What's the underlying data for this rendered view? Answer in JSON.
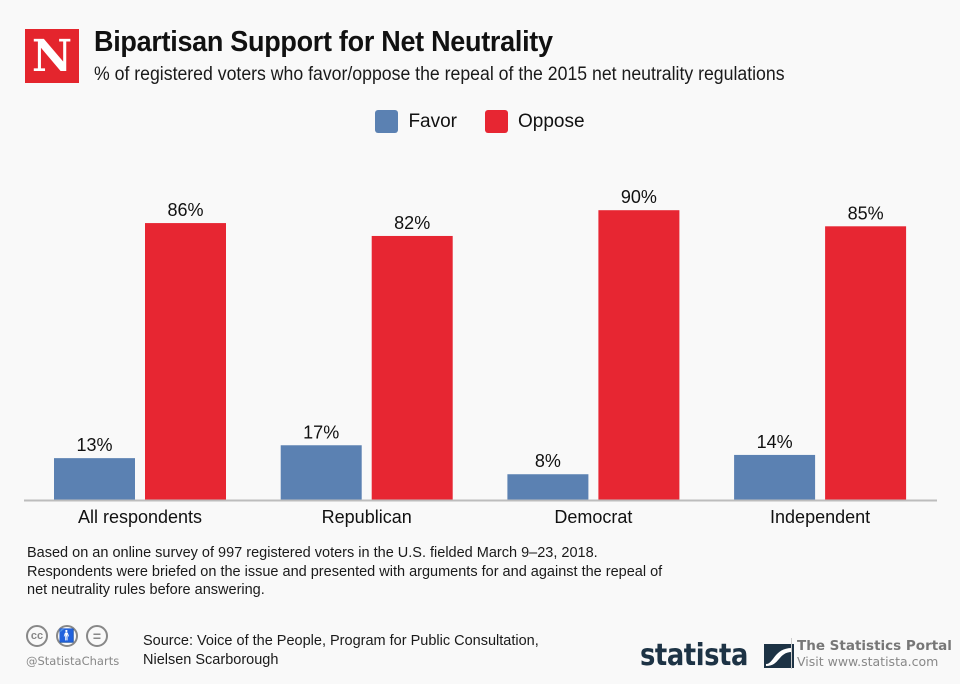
{
  "header": {
    "logo_letter": "N",
    "title": "Bipartisan Support for Net Neutrality",
    "subtitle": "% of registered voters who favor/oppose the repeal of the 2015 net neutrality regulations"
  },
  "colors": {
    "favor": "#5b81b2",
    "oppose": "#e72632",
    "axis": "#bdbdbd",
    "brand_red": "#e4252d",
    "statista_navy": "#1d3345"
  },
  "chart_data": {
    "type": "bar",
    "title": "Bipartisan Support for Net Neutrality",
    "subtitle": "% of registered voters who favor/oppose the repeal of the 2015 net neutrality regulations",
    "categories": [
      "All respondents",
      "Republican",
      "Democrat",
      "Independent"
    ],
    "series": [
      {
        "name": "Favor",
        "values": [
          13,
          17,
          8,
          14
        ],
        "labels": [
          "13%",
          "17%",
          "8%",
          "14%"
        ]
      },
      {
        "name": "Oppose",
        "values": [
          86,
          82,
          90,
          85
        ],
        "labels": [
          "86%",
          "82%",
          "90%",
          "85%"
        ]
      }
    ],
    "xlabel": "",
    "ylabel": "",
    "ylim": [
      0,
      100
    ],
    "grid": false,
    "legend": "top-center"
  },
  "legend": [
    {
      "label": "Favor"
    },
    {
      "label": "Oppose"
    }
  ],
  "footer": {
    "note_lines": [
      "Based on an online survey of 997 registered voters in the U.S. fielded March 9–23, 2018.",
      "Respondents were briefed on the issue and presented with arguments for and against the repeal of",
      "net neutrality rules before answering."
    ],
    "cc_icons": [
      "cc",
      "i",
      "="
    ],
    "handle": "@StatistaCharts",
    "source_lines": [
      "Source: Voice of the People, Program for Public Consultation,",
      "Nielsen Scarborough"
    ],
    "brand": "statista",
    "portal_title": "The Statistics Portal",
    "portal_url": "Visit www.statista.com"
  }
}
